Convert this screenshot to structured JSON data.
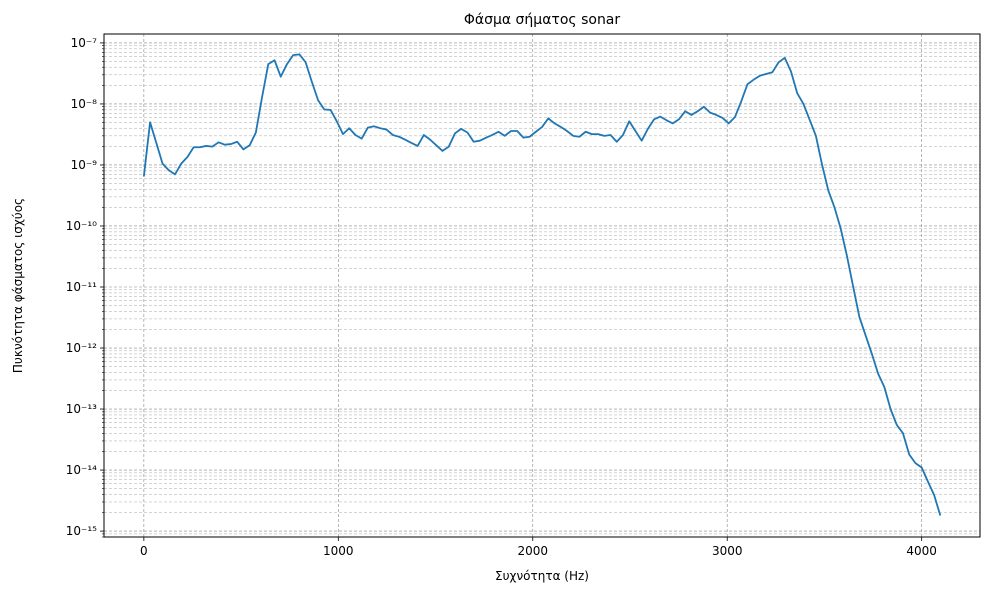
{
  "chart_data": {
    "type": "line",
    "title": "Φάσμα σήματος sonar",
    "xlabel": "Συχνότητα (Hz)",
    "ylabel": "Πυκνότητα φάσματος ισχύος",
    "xlim": [
      -205,
      4300
    ],
    "ylim": [
      8e-16,
      1.4e-07
    ],
    "yscale": "log",
    "grid": true,
    "x_ticks": [
      0,
      1000,
      2000,
      3000,
      4000
    ],
    "x_tick_labels": [
      "0",
      "1000",
      "2000",
      "3000",
      "4000"
    ],
    "y_tick_exponents": [
      -15,
      -14,
      -13,
      -12,
      -11,
      -10,
      -9,
      -8,
      -7
    ],
    "y_tick_labels": [
      "10⁻¹⁵",
      "10⁻¹⁴",
      "10⁻¹³",
      "10⁻¹²",
      "10⁻¹¹",
      "10⁻¹⁰",
      "10⁻⁹",
      "10⁻⁸",
      "10⁻⁷"
    ],
    "series": [
      {
        "color": "#1f77b4",
        "x": [
          0,
          32,
          64,
          96,
          128,
          160,
          192,
          224,
          256,
          288,
          320,
          352,
          384,
          416,
          448,
          480,
          512,
          544,
          576,
          608,
          640,
          672,
          704,
          736,
          768,
          800,
          832,
          864,
          896,
          928,
          960,
          992,
          1024,
          1056,
          1088,
          1120,
          1152,
          1184,
          1216,
          1248,
          1280,
          1312,
          1344,
          1376,
          1408,
          1440,
          1472,
          1504,
          1536,
          1568,
          1600,
          1632,
          1664,
          1696,
          1728,
          1760,
          1792,
          1824,
          1856,
          1888,
          1920,
          1952,
          1984,
          2016,
          2048,
          2080,
          2112,
          2144,
          2176,
          2208,
          2240,
          2272,
          2304,
          2336,
          2368,
          2400,
          2432,
          2464,
          2496,
          2528,
          2560,
          2592,
          2624,
          2656,
          2688,
          2720,
          2752,
          2784,
          2816,
          2848,
          2880,
          2912,
          2944,
          2976,
          3008,
          3040,
          3072,
          3104,
          3136,
          3168,
          3200,
          3232,
          3264,
          3296,
          3328,
          3360,
          3392,
          3424,
          3456,
          3488,
          3520,
          3552,
          3584,
          3616,
          3648,
          3680,
          3712,
          3744,
          3776,
          3808,
          3840,
          3872,
          3904,
          3936,
          3968,
          4000,
          4032,
          4064,
          4096
        ],
        "y": [
          6.5e-10,
          5e-09,
          2.3e-09,
          1.05e-09,
          8.2e-10,
          7e-10,
          1.05e-09,
          1.35e-09,
          1.95e-09,
          1.95e-09,
          2.05e-09,
          2e-09,
          2.35e-09,
          2.15e-09,
          2.2e-09,
          2.4e-09,
          1.8e-09,
          2.1e-09,
          3.4e-09,
          1.3e-08,
          4.5e-08,
          5.2e-08,
          2.8e-08,
          4.5e-08,
          6.3e-08,
          6.5e-08,
          4.8e-08,
          2.3e-08,
          1.15e-08,
          8.1e-09,
          8e-09,
          5.2e-09,
          3.2e-09,
          4e-09,
          3.1e-09,
          2.7e-09,
          4.1e-09,
          4.3e-09,
          4e-09,
          3.8e-09,
          3.1e-09,
          2.9e-09,
          2.6e-09,
          2.3e-09,
          2.05e-09,
          3.1e-09,
          2.6e-09,
          2.1e-09,
          1.7e-09,
          2e-09,
          3.3e-09,
          3.9e-09,
          3.4e-09,
          2.4e-09,
          2.5e-09,
          2.8e-09,
          3.1e-09,
          3.5e-09,
          3e-09,
          3.6e-09,
          3.6e-09,
          2.8e-09,
          2.9e-09,
          3.5e-09,
          4.2e-09,
          5.8e-09,
          4.8e-09,
          4.2e-09,
          3.6e-09,
          3e-09,
          2.9e-09,
          3.5e-09,
          3.2e-09,
          3.2e-09,
          3e-09,
          3.1e-09,
          2.4e-09,
          3.1e-09,
          5.2e-09,
          3.6e-09,
          2.5e-09,
          3.9e-09,
          5.6e-09,
          6.2e-09,
          5.4e-09,
          4.8e-09,
          5.6e-09,
          7.6e-09,
          6.6e-09,
          7.6e-09,
          9e-09,
          7.2e-09,
          6.6e-09,
          5.9e-09,
          4.8e-09,
          6.1e-09,
          1.1e-08,
          2.1e-08,
          2.5e-08,
          2.9e-08,
          3.1e-08,
          3.3e-08,
          4.8e-08,
          5.7e-08,
          3.4e-08,
          1.5e-08,
          1e-08,
          5.5e-09,
          3e-09,
          1e-09,
          3.8e-10,
          2e-10,
          9e-11,
          3.2e-11,
          1e-11,
          3.2e-12,
          1.6e-12,
          8e-13,
          3.8e-13,
          2.3e-13,
          1e-13,
          5.5e-14,
          4e-14,
          1.8e-14,
          1.3e-14,
          1.1e-14,
          6.5e-15,
          3.9e-15,
          1.8e-15
        ]
      }
    ]
  }
}
